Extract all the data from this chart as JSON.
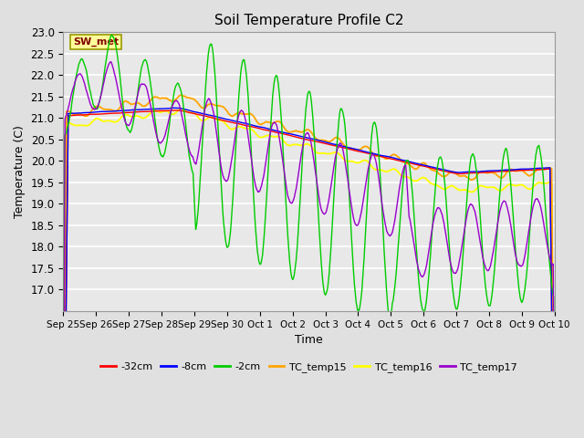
{
  "title": "Soil Temperature Profile C2",
  "xlabel": "Time",
  "ylabel": "Temperature (C)",
  "ylim": [
    16.5,
    23.0
  ],
  "yticks": [
    17.0,
    17.5,
    18.0,
    18.5,
    19.0,
    19.5,
    20.0,
    20.5,
    21.0,
    21.5,
    22.0,
    22.5,
    23.0
  ],
  "background_color": "#e0e0e0",
  "plot_bg_color": "#e8e8e8",
  "grid_color": "#ffffff",
  "annotation_text": "SW_met",
  "annotation_box_color": "#ffff99",
  "annotation_text_color": "#800000",
  "legend_labels": [
    "-32cm",
    "-8cm",
    "-2cm",
    "TC_temp15",
    "TC_temp16",
    "TC_temp17"
  ],
  "legend_colors": [
    "#ff0000",
    "#0000ff",
    "#00cc00",
    "#ffa500",
    "#ffff00",
    "#9900cc"
  ],
  "xtick_labels": [
    "Sep 25",
    "Sep 26",
    "Sep 27",
    "Sep 28",
    "Sep 29",
    "Sep 30",
    "Oct 1",
    "Oct 2",
    "Oct 3",
    "Oct 4",
    "Oct 5",
    "Oct 6",
    "Oct 7",
    "Oct 8",
    "Oct 9",
    "Oct 10"
  ]
}
